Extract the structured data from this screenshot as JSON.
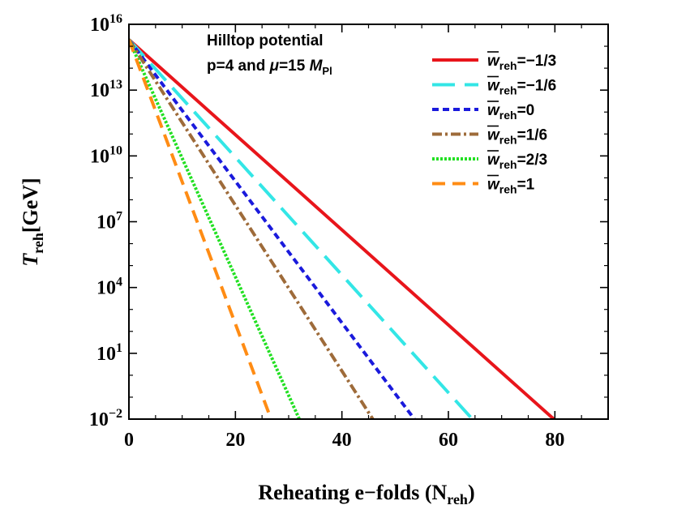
{
  "chart_data": {
    "type": "line",
    "xlabel": "Reheating e−folds (N",
    "xlabel_sub": "reh",
    "xlabel_close": ")",
    "ylabel": "T",
    "ylabel_sub": "reh",
    "ylabel_unit": "[GeV]",
    "xlim": [
      0,
      90
    ],
    "ylim_log10": [
      -2,
      16
    ],
    "y_scale": "log",
    "x_ticks": [
      0,
      20,
      40,
      60,
      80
    ],
    "x_tick_labels": [
      "0",
      "20",
      "40",
      "60",
      "80"
    ],
    "y_ticks": [
      {
        "base": "10",
        "exp": "16",
        "value": 16
      },
      {
        "base": "10",
        "exp": "13",
        "value": 13
      },
      {
        "base": "10",
        "exp": "10",
        "value": 10
      },
      {
        "base": "10",
        "exp": "7",
        "value": 7
      },
      {
        "base": "10",
        "exp": "4",
        "value": 4
      },
      {
        "base": "10",
        "exp": "1",
        "value": 1
      },
      {
        "base": "10",
        "exp": "−2",
        "value": -2
      }
    ],
    "annotation": {
      "line1": "Hilltop potential",
      "line2_a": "p=4 and ",
      "line2_mu": "μ",
      "line2_b": "=15 ",
      "line2_M": "M",
      "line2_Msub": "Pl"
    },
    "legend_position": "top-right",
    "grid": false,
    "series": [
      {
        "symbol": "w",
        "sub": "reh",
        "value": "=−1/3",
        "color": "#e8151b",
        "dash": "solid",
        "points": [
          [
            0,
            15.3
          ],
          [
            79.8,
            -2
          ]
        ]
      },
      {
        "symbol": "w",
        "sub": "reh",
        "value": "=−1/6",
        "color": "#33e6e6",
        "dash": "longdash",
        "points": [
          [
            0,
            15.3
          ],
          [
            64.5,
            -2
          ]
        ]
      },
      {
        "symbol": "w",
        "sub": "reh",
        "value": "=0",
        "color": "#1a1adc",
        "dash": "shortdash",
        "points": [
          [
            0,
            15.3
          ],
          [
            53.6,
            -2
          ]
        ]
      },
      {
        "symbol": "w",
        "sub": "reh",
        "value": "=1/6",
        "color": "#9e6b3a",
        "dash": "dashdot",
        "points": [
          [
            0,
            15.3
          ],
          [
            45.8,
            -2
          ]
        ]
      },
      {
        "symbol": "w",
        "sub": "reh",
        "value": "=2/3",
        "color": "#22e022",
        "dash": "dotted",
        "points": [
          [
            0,
            15.3
          ],
          [
            32.0,
            -2
          ]
        ]
      },
      {
        "symbol": "w",
        "sub": "reh",
        "value": "=1",
        "color": "#ff8c14",
        "dash": "dashed",
        "points": [
          [
            0,
            15.3
          ],
          [
            26.7,
            -2
          ]
        ]
      }
    ]
  }
}
